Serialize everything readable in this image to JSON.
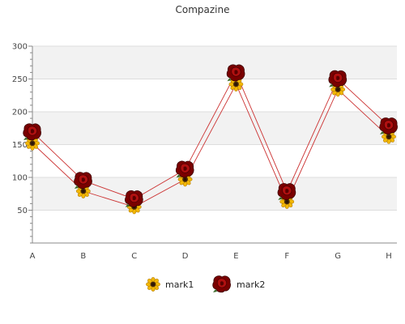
{
  "chart_data": {
    "type": "line",
    "title": "Compazine",
    "categories": [
      "A",
      "B",
      "C",
      "D",
      "E",
      "F",
      "G",
      "H"
    ],
    "ylim": [
      0,
      300
    ],
    "yticks": [
      50,
      100,
      150,
      200,
      250,
      300
    ],
    "grid": true,
    "legend_position": "bottom",
    "series": [
      {
        "name": "mark1",
        "values": [
          152,
          79,
          55,
          97,
          242,
          63,
          234,
          162
        ],
        "color": "#cc3333",
        "marker": "sunflower-icon"
      },
      {
        "name": "mark2",
        "values": [
          169,
          95,
          67,
          112,
          259,
          78,
          250,
          178
        ],
        "color": "#cc3333",
        "marker": "rose-icon"
      }
    ]
  },
  "colors": {
    "band": "#f2f2f2",
    "gridline": "#dddddd",
    "axis": "#888888",
    "line": "#cc3333"
  }
}
